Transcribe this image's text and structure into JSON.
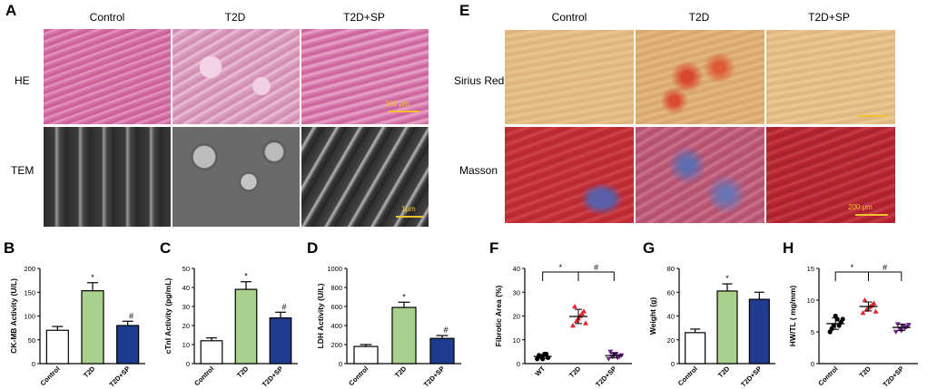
{
  "panel_labels": {
    "A": "A",
    "B": "B",
    "C": "C",
    "D": "D",
    "E": "E",
    "F": "F",
    "G": "G",
    "H": "H"
  },
  "panel_A": {
    "columns": [
      "Control",
      "T2D",
      "T2D+SP"
    ],
    "rows": [
      "HE",
      "TEM"
    ],
    "scale_bar": "200 μm",
    "scale_bar_tem": "1μm"
  },
  "panel_E": {
    "columns": [
      "Control",
      "T2D",
      "T2D+SP"
    ],
    "rows": [
      "Sirius Red",
      "Masson"
    ],
    "scale_bar": "200 μm"
  },
  "colors": {
    "control": "#ffffff",
    "t2d": "#a9d18e",
    "t2dsp": "#1f3b8f",
    "stroke": "#000000",
    "scatter_wt": "#000000",
    "scatter_t2d": "#e8222a",
    "scatter_t2dsp": "#6b2586"
  },
  "chart_data": [
    {
      "id": "B",
      "type": "bar",
      "ylabel": "CK-MB Activity (U/L)",
      "categories": [
        "Control",
        "T2D",
        "T2D+SP"
      ],
      "values": [
        70,
        153,
        80
      ],
      "errors": [
        8,
        17,
        9
      ],
      "ylim": [
        0,
        200
      ],
      "yticks": [
        0,
        50,
        100,
        150,
        200
      ],
      "sig": [
        "",
        "*",
        "#"
      ]
    },
    {
      "id": "C",
      "type": "bar",
      "ylabel": "cTnI Activity (pg/mL)",
      "categories": [
        "Control",
        "T2D",
        "T2D+SP"
      ],
      "values": [
        12,
        39,
        24
      ],
      "errors": [
        1.5,
        4,
        3
      ],
      "ylim": [
        0,
        50
      ],
      "yticks": [
        0,
        10,
        20,
        30,
        40,
        50
      ],
      "sig": [
        "",
        "*",
        "#"
      ]
    },
    {
      "id": "D",
      "type": "bar",
      "ylabel": "LDH Activity (U/L)",
      "categories": [
        "Control",
        "T2D",
        "T2D+SP"
      ],
      "values": [
        180,
        590,
        265
      ],
      "errors": [
        20,
        55,
        30
      ],
      "ylim": [
        0,
        1000
      ],
      "yticks": [
        0,
        200,
        400,
        600,
        800,
        1000
      ],
      "sig": [
        "",
        "*",
        "#"
      ]
    },
    {
      "id": "F",
      "type": "scatter",
      "ylabel": "Fibrotic Area (%)",
      "categories": [
        "WT",
        "T2D",
        "T2D+SP"
      ],
      "points": [
        [
          2,
          3,
          4,
          2.5,
          3.5,
          2,
          4
        ],
        [
          16,
          18,
          20,
          22,
          24,
          19,
          21,
          17
        ],
        [
          2,
          3,
          4,
          3,
          5,
          4,
          2.5,
          3.5
        ]
      ],
      "means": [
        3,
        19.8,
        3.4
      ],
      "sds": [
        0.8,
        3,
        1
      ],
      "ylim": [
        0,
        40
      ],
      "yticks": [
        0,
        10,
        20,
        30,
        40
      ],
      "brackets": [
        {
          "from": 0,
          "to": 1,
          "label": "*"
        },
        {
          "from": 1,
          "to": 2,
          "label": "#"
        }
      ]
    },
    {
      "id": "G",
      "type": "bar",
      "ylabel": "Weight (g)",
      "categories": [
        "Control",
        "T2D",
        "T2D+SP"
      ],
      "values": [
        26,
        61,
        54
      ],
      "errors": [
        3,
        6,
        6
      ],
      "ylim": [
        0,
        80
      ],
      "yticks": [
        0,
        20,
        40,
        60,
        80
      ],
      "sig": [
        "",
        "*",
        ""
      ]
    },
    {
      "id": "H",
      "type": "scatter",
      "ylabel": "HW/TL ( mg/mm)",
      "categories": [
        "Control",
        "T2D",
        "T2D+SP"
      ],
      "points": [
        [
          5,
          6,
          7,
          6.5,
          5.5,
          7.5,
          6,
          7
        ],
        [
          8,
          8.5,
          9,
          9.5,
          10,
          8.8,
          9.2,
          8.2
        ],
        [
          5,
          5.5,
          6,
          5.8,
          6.2,
          5.2,
          5.6,
          6.1
        ]
      ],
      "means": [
        6.3,
        9,
        5.7
      ],
      "sds": [
        0.9,
        0.7,
        0.5
      ],
      "ylim": [
        0,
        15
      ],
      "yticks": [
        0,
        5,
        10,
        15
      ],
      "brackets": [
        {
          "from": 0,
          "to": 1,
          "label": "*"
        },
        {
          "from": 1,
          "to": 2,
          "label": "#"
        }
      ]
    }
  ]
}
